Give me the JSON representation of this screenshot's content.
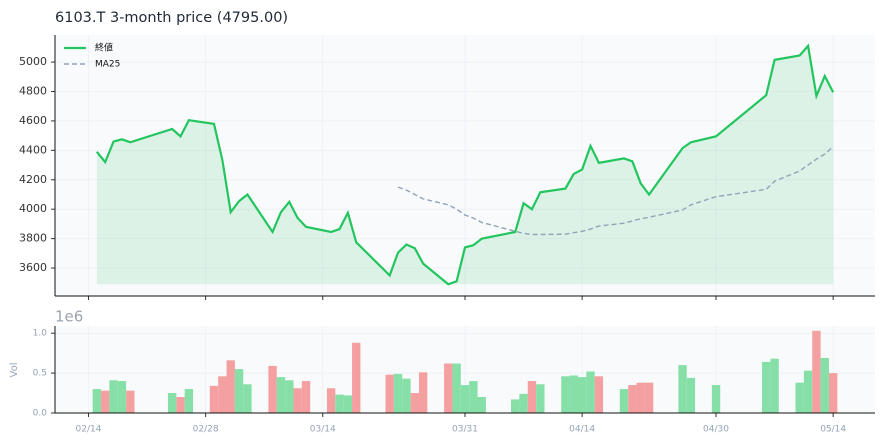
{
  "chart_data": [
    {
      "type": "line",
      "title": "6103.T  3-month price (4795.00)",
      "x": [
        "02/15",
        "02/16",
        "02/17",
        "02/18",
        "02/19",
        "02/24",
        "02/25",
        "02/26",
        "03/01",
        "03/02",
        "03/03",
        "03/04",
        "03/05",
        "03/08",
        "03/09",
        "03/10",
        "03/11",
        "03/12",
        "03/15",
        "03/16",
        "03/17",
        "03/18",
        "03/22",
        "03/23",
        "03/24",
        "03/25",
        "03/26",
        "03/29",
        "03/30",
        "03/31",
        "04/01",
        "04/02",
        "04/06",
        "04/07",
        "04/08",
        "04/09",
        "04/12",
        "04/13",
        "04/14",
        "04/15",
        "04/16",
        "04/19",
        "04/20",
        "04/21",
        "04/22",
        "04/26",
        "04/27",
        "04/30",
        "05/06",
        "05/07",
        "05/10",
        "05/11",
        "05/12",
        "05/13",
        "05/14"
      ],
      "series": [
        {
          "name": "終値",
          "color": "#22c55e",
          "values": [
            4390,
            4320,
            4460,
            4475,
            4455,
            4545,
            4495,
            4605,
            4580,
            4335,
            3980,
            4055,
            4100,
            3845,
            3980,
            4050,
            3940,
            3880,
            3845,
            3865,
            3975,
            3775,
            3550,
            3705,
            3760,
            3735,
            3630,
            3490,
            3510,
            3740,
            3755,
            3800,
            3845,
            4040,
            4000,
            4115,
            4140,
            4240,
            4270,
            4430,
            4315,
            4345,
            4325,
            4175,
            4100,
            4415,
            4455,
            4495,
            4775,
            5015,
            5045,
            5110,
            4770,
            4905,
            4795
          ]
        },
        {
          "name": "MA25",
          "color": "#94a3b8",
          "values": [
            null,
            null,
            null,
            null,
            null,
            null,
            null,
            null,
            null,
            null,
            null,
            null,
            null,
            null,
            null,
            null,
            null,
            null,
            null,
            null,
            null,
            null,
            null,
            4150,
            4130,
            4100,
            4070,
            4030,
            4000,
            3960,
            3940,
            3910,
            3850,
            3835,
            3828,
            3828,
            3830,
            3840,
            3850,
            3865,
            3885,
            3905,
            3920,
            3935,
            3945,
            3995,
            4030,
            4085,
            4135,
            4190,
            4260,
            4300,
            4340,
            4375,
            4425
          ]
        }
      ],
      "xlim": [
        "02/10",
        "05/19"
      ],
      "xticks": [
        "02/14",
        "02/28",
        "03/14",
        "03/31",
        "04/14",
        "04/30",
        "05/14"
      ],
      "ylim": [
        3410,
        5184
      ],
      "yticks": [
        3600,
        3800,
        4000,
        4200,
        4400,
        4600,
        4800,
        5000
      ],
      "grid": true,
      "legend": "upper-left"
    },
    {
      "type": "bar",
      "ylabel": "Vol",
      "offset_label": "1e6",
      "x": [
        "02/15",
        "02/16",
        "02/17",
        "02/18",
        "02/19",
        "02/24",
        "02/25",
        "02/26",
        "03/01",
        "03/02",
        "03/03",
        "03/04",
        "03/05",
        "03/08",
        "03/09",
        "03/10",
        "03/11",
        "03/12",
        "03/15",
        "03/16",
        "03/17",
        "03/18",
        "03/22",
        "03/23",
        "03/24",
        "03/25",
        "03/26",
        "03/29",
        "03/30",
        "03/31",
        "04/01",
        "04/02",
        "04/06",
        "04/07",
        "04/08",
        "04/09",
        "04/12",
        "04/13",
        "04/14",
        "04/15",
        "04/16",
        "04/19",
        "04/20",
        "04/21",
        "04/22",
        "04/26",
        "04/27",
        "04/30",
        "05/06",
        "05/07",
        "05/10",
        "05/11",
        "05/12",
        "05/13",
        "05/14"
      ],
      "values": [
        0.3,
        0.28,
        0.41,
        0.4,
        0.28,
        0.25,
        0.2,
        0.3,
        0.34,
        0.46,
        0.66,
        0.55,
        0.36,
        0.59,
        0.45,
        0.41,
        0.31,
        0.4,
        0.31,
        0.23,
        0.22,
        0.88,
        0.48,
        0.49,
        0.43,
        0.25,
        0.51,
        0.62,
        0.62,
        0.35,
        0.4,
        0.2,
        0.17,
        0.24,
        0.4,
        0.36,
        0.46,
        0.47,
        0.45,
        0.52,
        0.46,
        0.3,
        0.35,
        0.38,
        0.38,
        0.6,
        0.44,
        0.35,
        0.64,
        0.68,
        0.38,
        0.53,
        1.03,
        0.69,
        0.5
      ],
      "up_color": "#86dfa6",
      "down_color": "#f4a0a0",
      "xlim": [
        "02/10",
        "05/19"
      ],
      "xticks": [
        "02/14",
        "02/28",
        "03/14",
        "03/31",
        "04/14",
        "04/30",
        "05/14"
      ],
      "ylim": [
        0,
        1.09
      ],
      "yticks": [
        {
          "value": 0,
          "label": "0.0"
        },
        0.5,
        {
          "value": 1,
          "label": "1.0"
        }
      ],
      "grid": true
    }
  ]
}
